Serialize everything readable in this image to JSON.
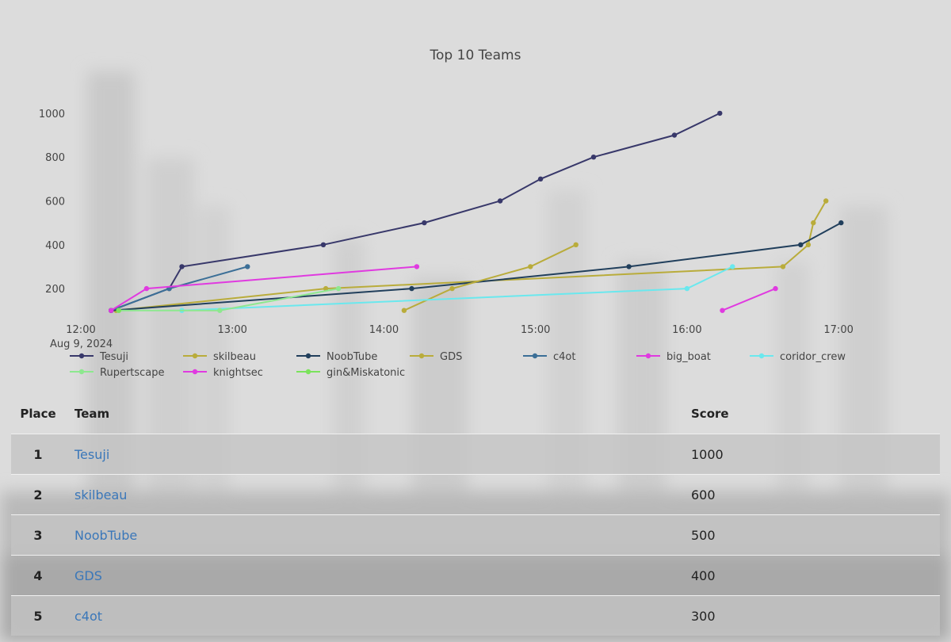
{
  "chart_data": {
    "type": "line",
    "title": "Top 10 Teams",
    "x_axis": {
      "type": "time",
      "range": [
        "2024-08-09 12:00",
        "2024-08-09 17:10"
      ],
      "tick_labels": [
        "12:00",
        "13:00",
        "14:00",
        "15:00",
        "16:00",
        "17:00"
      ],
      "date_label": "Aug 9, 2024"
    },
    "y_axis": {
      "range": [
        70,
        1090
      ],
      "tick_labels": [
        "200",
        "400",
        "600",
        "800",
        "1000"
      ]
    },
    "grid": false,
    "legend_position": "bottom",
    "series": [
      {
        "name": "Tesuji",
        "color": "#38386a",
        "points": [
          [
            "12:12",
            100
          ],
          [
            "12:35",
            200
          ],
          [
            "12:40",
            300
          ],
          [
            "13:36",
            400
          ],
          [
            "14:16",
            500
          ],
          [
            "14:46",
            600
          ],
          [
            "15:02",
            700
          ],
          [
            "15:23",
            800
          ],
          [
            "15:55",
            900
          ],
          [
            "16:13",
            1000
          ]
        ]
      },
      {
        "name": "skilbeau",
        "color": "#b9ac3b",
        "points": [
          [
            "12:14",
            100
          ],
          [
            "13:37",
            200
          ],
          [
            "16:38",
            300
          ],
          [
            "16:48",
            400
          ],
          [
            "16:50",
            500
          ],
          [
            "16:55",
            600
          ]
        ]
      },
      {
        "name": "NoobTube",
        "color": "#213f5c",
        "points": [
          [
            "12:12",
            100
          ],
          [
            "14:11",
            200
          ],
          [
            "15:37",
            300
          ],
          [
            "16:45",
            400
          ],
          [
            "17:01",
            500
          ]
        ]
      },
      {
        "name": "GDS",
        "color": "#b9ac3b",
        "points": [
          [
            "14:08",
            100
          ],
          [
            "14:27",
            200
          ],
          [
            "14:58",
            300
          ],
          [
            "15:16",
            400
          ]
        ]
      },
      {
        "name": "c4ot",
        "color": "#3b6f97",
        "points": [
          [
            "12:12",
            100
          ],
          [
            "12:35",
            200
          ],
          [
            "13:06",
            300
          ]
        ]
      },
      {
        "name": "big_boat",
        "color": "#e03ae0",
        "points": [
          [
            "16:14",
            100
          ],
          [
            "16:35",
            200
          ]
        ]
      },
      {
        "name": "coridor_crew",
        "color": "#6ae8ee",
        "points": [
          [
            "12:40",
            100
          ],
          [
            "16:00",
            200
          ],
          [
            "16:18",
            300
          ]
        ]
      },
      {
        "name": "Rupertscape",
        "color": "#8de88f",
        "points": [
          [
            "12:15",
            100
          ],
          [
            "12:55",
            100
          ],
          [
            "13:42",
            200
          ]
        ]
      },
      {
        "name": "knightsec",
        "color": "#e03ae0",
        "points": [
          [
            "12:12",
            100
          ],
          [
            "12:26",
            200
          ],
          [
            "14:13",
            300
          ]
        ]
      },
      {
        "name": "gin&Miskatonic",
        "color": "#7be35c",
        "points": [
          [
            "12:15",
            100
          ]
        ]
      }
    ]
  },
  "table": {
    "headers": {
      "place": "Place",
      "team": "Team",
      "score": "Score"
    },
    "rows": [
      {
        "place": "1",
        "team": "Tesuji",
        "score": "1000"
      },
      {
        "place": "2",
        "team": "skilbeau",
        "score": "600"
      },
      {
        "place": "3",
        "team": "NoobTube",
        "score": "500"
      },
      {
        "place": "4",
        "team": "GDS",
        "score": "400"
      },
      {
        "place": "5",
        "team": "c4ot",
        "score": "300"
      }
    ]
  }
}
